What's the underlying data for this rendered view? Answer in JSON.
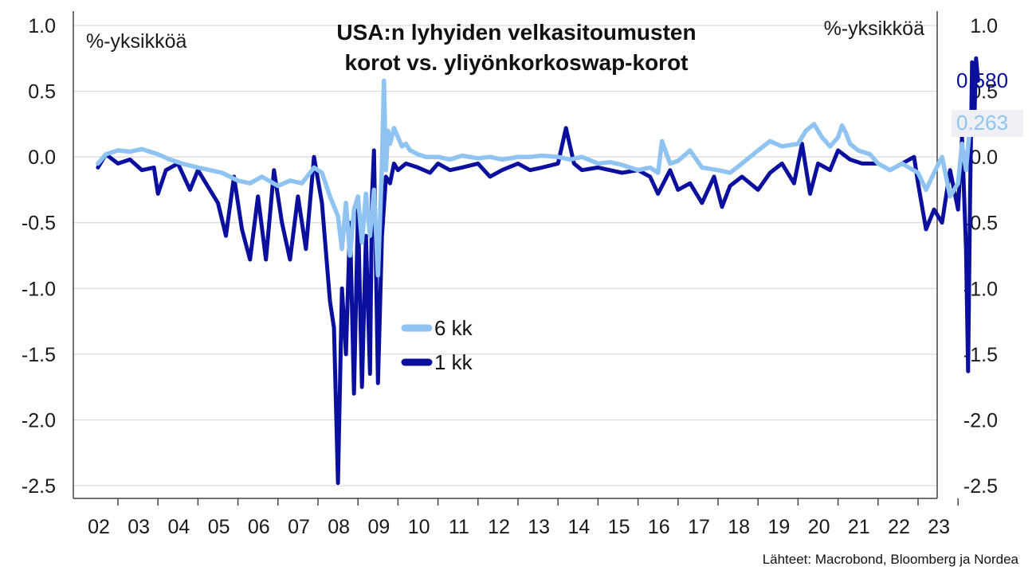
{
  "chart_data": {
    "type": "line",
    "title_lines": [
      "USA:n lyhyiden velkasitoumusten",
      "korot vs. yliyönkorkoswap-korot"
    ],
    "ylabel_left": "%-yksikköä",
    "ylabel_right": "%-yksikköä",
    "ylim": [
      -2.5,
      1.0
    ],
    "yticks": [
      1.0,
      0.5,
      0.0,
      -0.5,
      -1.0,
      -1.5,
      -2.0,
      -2.5
    ],
    "ytick_labels": [
      "1.0",
      "0.5",
      "0.0",
      "-0.5",
      "-1.0",
      "-1.5",
      "-2.0",
      "-2.5"
    ],
    "xlim": [
      2001.5,
      2023.5
    ],
    "xtick_labels": [
      "02",
      "03",
      "04",
      "05",
      "06",
      "07",
      "08",
      "09",
      "10",
      "11",
      "12",
      "13",
      "14",
      "15",
      "16",
      "17",
      "18",
      "19",
      "20",
      "21",
      "22",
      "23"
    ],
    "grid": "horizontal",
    "legend": {
      "placement": "center"
    },
    "series": [
      {
        "name": "6 kk",
        "color": "#8fc4f2",
        "last_value_label": "0.263",
        "x": [
          2001.5,
          2001.7,
          2002.0,
          2002.3,
          2002.6,
          2003.0,
          2003.3,
          2003.6,
          2004.0,
          2004.3,
          2004.6,
          2005.0,
          2005.3,
          2005.6,
          2006.0,
          2006.3,
          2006.6,
          2006.9,
          2007.1,
          2007.3,
          2007.5,
          2007.6,
          2007.7,
          2007.8,
          2007.9,
          2008.0,
          2008.1,
          2008.2,
          2008.3,
          2008.4,
          2008.5,
          2008.6,
          2008.65,
          2008.7,
          2008.75,
          2008.8,
          2008.9,
          2009.0,
          2009.1,
          2009.2,
          2009.3,
          2009.5,
          2009.7,
          2010.0,
          2010.3,
          2010.6,
          2011.0,
          2011.3,
          2011.6,
          2012.0,
          2012.3,
          2012.6,
          2013.0,
          2013.3,
          2013.6,
          2014.0,
          2014.3,
          2014.6,
          2015.0,
          2015.3,
          2015.5,
          2015.6,
          2015.8,
          2016.0,
          2016.3,
          2016.6,
          2017.0,
          2017.3,
          2017.6,
          2018.0,
          2018.3,
          2018.6,
          2019.0,
          2019.2,
          2019.4,
          2019.6,
          2019.8,
          2020.0,
          2020.1,
          2020.2,
          2020.3,
          2020.5,
          2020.8,
          2021.0,
          2021.3,
          2021.6,
          2022.0,
          2022.2,
          2022.4,
          2022.6,
          2022.8,
          2023.0,
          2023.1,
          2023.2,
          2023.3,
          2023.4,
          2023.5
        ],
        "values": [
          -0.05,
          0.02,
          0.05,
          0.04,
          0.06,
          0.02,
          -0.02,
          -0.05,
          -0.08,
          -0.1,
          -0.12,
          -0.18,
          -0.2,
          -0.15,
          -0.22,
          -0.18,
          -0.2,
          -0.08,
          -0.12,
          -0.3,
          -0.45,
          -0.7,
          -0.35,
          -0.75,
          -0.4,
          -0.3,
          -0.65,
          -0.28,
          -0.6,
          -0.25,
          -0.9,
          -0.05,
          0.58,
          -0.1,
          0.2,
          0.1,
          0.22,
          0.15,
          0.08,
          0.1,
          0.05,
          0.02,
          0.0,
          0.0,
          -0.02,
          0.01,
          -0.01,
          0.0,
          -0.02,
          0.0,
          0.0,
          0.01,
          0.0,
          -0.02,
          0.0,
          -0.05,
          -0.04,
          -0.06,
          -0.1,
          -0.08,
          -0.12,
          0.12,
          -0.05,
          -0.03,
          0.05,
          -0.08,
          -0.1,
          -0.12,
          -0.05,
          0.05,
          0.12,
          0.08,
          0.1,
          0.2,
          0.25,
          0.15,
          0.08,
          0.15,
          0.24,
          0.18,
          0.1,
          0.05,
          0.02,
          -0.05,
          -0.1,
          -0.05,
          -0.12,
          -0.25,
          -0.12,
          0.0,
          -0.3,
          -0.2,
          0.1,
          -0.1,
          0.25,
          0.3,
          0.263
        ]
      },
      {
        "name": "1 kk",
        "color": "#0a0f9e",
        "last_value_label": "0.580",
        "x": [
          2001.5,
          2001.7,
          2002.0,
          2002.3,
          2002.6,
          2002.9,
          2003.0,
          2003.2,
          2003.5,
          2003.8,
          2004.0,
          2004.2,
          2004.5,
          2004.7,
          2004.9,
          2005.1,
          2005.3,
          2005.5,
          2005.7,
          2005.9,
          2006.1,
          2006.3,
          2006.5,
          2006.7,
          2006.9,
          2007.1,
          2007.3,
          2007.4,
          2007.5,
          2007.6,
          2007.7,
          2007.8,
          2007.9,
          2008.0,
          2008.1,
          2008.2,
          2008.3,
          2008.35,
          2008.4,
          2008.5,
          2008.6,
          2008.7,
          2008.8,
          2008.9,
          2009.0,
          2009.2,
          2009.5,
          2009.8,
          2010.0,
          2010.3,
          2010.6,
          2011.0,
          2011.3,
          2011.6,
          2012.0,
          2012.3,
          2012.6,
          2013.0,
          2013.2,
          2013.4,
          2013.6,
          2014.0,
          2014.3,
          2014.6,
          2015.0,
          2015.3,
          2015.5,
          2015.8,
          2016.0,
          2016.3,
          2016.6,
          2016.9,
          2017.1,
          2017.3,
          2017.6,
          2018.0,
          2018.3,
          2018.6,
          2018.9,
          2019.1,
          2019.3,
          2019.5,
          2019.8,
          2020.0,
          2020.3,
          2020.6,
          2021.0,
          2021.3,
          2021.6,
          2021.9,
          2022.0,
          2022.2,
          2022.4,
          2022.6,
          2022.8,
          2023.0,
          2023.1,
          2023.2,
          2023.25,
          2023.3,
          2023.35,
          2023.4,
          2023.45,
          2023.5
        ],
        "values": [
          -0.08,
          0.02,
          -0.05,
          -0.02,
          -0.1,
          -0.08,
          -0.28,
          -0.1,
          -0.05,
          -0.25,
          -0.1,
          -0.2,
          -0.35,
          -0.6,
          -0.15,
          -0.55,
          -0.78,
          -0.3,
          -0.78,
          -0.1,
          -0.5,
          -0.78,
          -0.3,
          -0.7,
          0.0,
          -0.35,
          -1.1,
          -1.3,
          -2.48,
          -1.0,
          -1.5,
          -0.5,
          -1.8,
          -0.4,
          -1.75,
          -0.6,
          -1.65,
          -0.3,
          0.05,
          -1.72,
          -0.6,
          -0.15,
          -0.2,
          -0.05,
          -0.1,
          -0.05,
          -0.08,
          -0.12,
          -0.05,
          -0.1,
          -0.08,
          -0.05,
          -0.15,
          -0.1,
          -0.05,
          -0.1,
          -0.08,
          -0.05,
          0.22,
          -0.05,
          -0.1,
          -0.08,
          -0.1,
          -0.12,
          -0.1,
          -0.15,
          -0.28,
          -0.1,
          -0.25,
          -0.2,
          -0.35,
          -0.15,
          -0.38,
          -0.22,
          -0.15,
          -0.25,
          -0.12,
          -0.05,
          -0.2,
          0.1,
          -0.28,
          -0.05,
          -0.1,
          0.05,
          -0.02,
          -0.05,
          -0.05,
          -0.1,
          -0.05,
          0.0,
          -0.2,
          -0.55,
          -0.4,
          -0.5,
          -0.1,
          -0.4,
          0.15,
          -0.7,
          -1.63,
          -0.3,
          0.72,
          0.2,
          0.75,
          0.58
        ]
      }
    ],
    "source": "Lähteet: Macrobond, Bloomberg ja Nordea"
  }
}
